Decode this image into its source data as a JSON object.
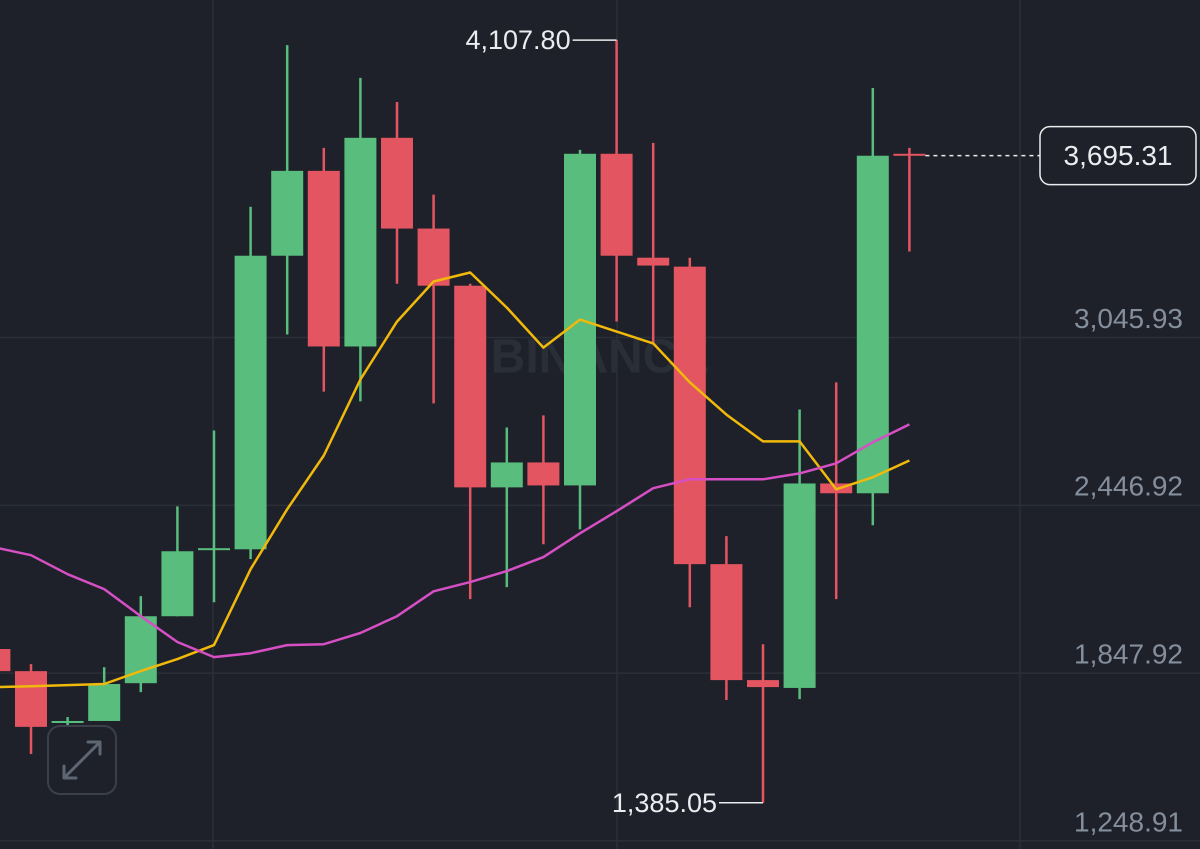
{
  "chart_data": {
    "type": "candlestick",
    "watermark": "BINANCE",
    "up_color": "#58bd7d",
    "down_color": "#e35561",
    "ylim": [
      1220,
      4251
    ],
    "yticks": [
      {
        "value": 3045.93,
        "label": "3,045.93"
      },
      {
        "value": 2446.92,
        "label": "2,446.92"
      },
      {
        "value": 1847.92,
        "label": "1,847.92"
      },
      {
        "value": 1248.91,
        "label": "1,248.91"
      }
    ],
    "grid": true,
    "candles": [
      {
        "open": 1934,
        "high": 1950,
        "low": 1840,
        "close": 1855
      },
      {
        "open": 1855,
        "high": 1880,
        "low": 1559,
        "close": 1656
      },
      {
        "open": 1670,
        "high": 1691,
        "low": 1648,
        "close": 1677
      },
      {
        "open": 1677,
        "high": 1869,
        "low": 1677,
        "close": 1809
      },
      {
        "open": 1812,
        "high": 2123,
        "low": 1780,
        "close": 2051
      },
      {
        "open": 2051,
        "high": 2443,
        "low": 2051,
        "close": 2283
      },
      {
        "open": 2287,
        "high": 2714,
        "low": 2101,
        "close": 2294
      },
      {
        "open": 2290,
        "high": 3513,
        "low": 2255,
        "close": 3338
      },
      {
        "open": 3338,
        "high": 4090,
        "low": 3057,
        "close": 3641
      },
      {
        "open": 3641,
        "high": 3723,
        "low": 2853,
        "close": 3014
      },
      {
        "open": 3014,
        "high": 3973,
        "low": 2818,
        "close": 3759
      },
      {
        "open": 3759,
        "high": 3887,
        "low": 3238,
        "close": 3435
      },
      {
        "open": 3435,
        "high": 3556,
        "low": 2811,
        "close": 3231
      },
      {
        "open": 3231,
        "high": 3238,
        "low": 2112,
        "close": 2511
      },
      {
        "open": 2511,
        "high": 2725,
        "low": 2155,
        "close": 2600
      },
      {
        "open": 2600,
        "high": 2768,
        "low": 2308,
        "close": 2518
      },
      {
        "open": 2518,
        "high": 3716,
        "low": 2361,
        "close": 3702
      },
      {
        "open": 3702,
        "high": 4107.8,
        "low": 3103,
        "close": 3338
      },
      {
        "open": 3331,
        "high": 3741,
        "low": 3021,
        "close": 3303
      },
      {
        "open": 3299,
        "high": 3331,
        "low": 2083,
        "close": 2237
      },
      {
        "open": 2237,
        "high": 2337,
        "low": 1752,
        "close": 1823
      },
      {
        "open": 1823,
        "high": 1951,
        "low": 1385.05,
        "close": 1798
      },
      {
        "open": 1795,
        "high": 2789,
        "low": 1755,
        "close": 2525
      },
      {
        "open": 2525,
        "high": 2886,
        "low": 2112,
        "close": 2490
      },
      {
        "open": 2490,
        "high": 3937,
        "low": 2376,
        "close": 3695
      },
      {
        "open": 3702,
        "high": 3723,
        "low": 3353,
        "close": 3695.31
      }
    ],
    "lines": [
      {
        "color": "#f0b90b",
        "values": [
          1798,
          1801,
          1805,
          1809,
          1855,
          1898,
          1948,
          2219,
          2433,
          2625,
          2896,
          3103,
          3246,
          3278,
          3153,
          3010,
          3110,
          3067,
          3025,
          2886,
          2771,
          2675,
          2675,
          2504,
          2547,
          2607
        ]
      },
      {
        "color": "#d64fc4",
        "values": [
          2297,
          2269,
          2201,
          2148,
          2051,
          1959,
          1905,
          1919,
          1948,
          1951,
          1991,
          2051,
          2140,
          2173,
          2212,
          2262,
          2347,
          2426,
          2508,
          2540,
          2540,
          2540,
          2561,
          2597,
          2672,
          2736
        ]
      }
    ],
    "annotations": [
      {
        "candle": 17,
        "value": 4107.8,
        "label": "4,107.80"
      },
      {
        "candle": 21,
        "value": 1385.05,
        "label": "1,385.05"
      }
    ],
    "last_price": {
      "value": 3695.31,
      "label": "3,695.31"
    }
  }
}
